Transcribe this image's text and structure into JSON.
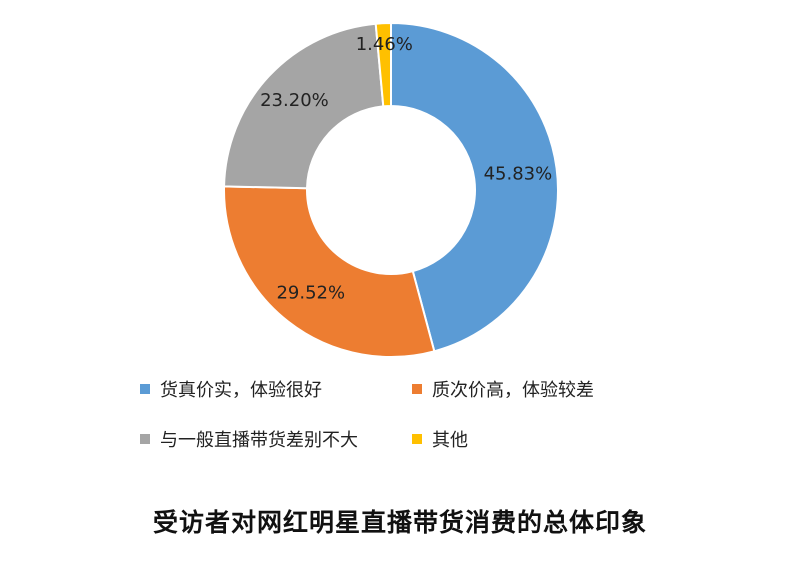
{
  "chart_data": {
    "type": "pie",
    "donut": true,
    "title": "受访者对网红明星直播带货消费的总体印象",
    "legend_position": "bottom",
    "slices": [
      {
        "label": "货真价实，体验很好",
        "value": 45.83,
        "value_label": "45.83%",
        "color": "#5B9BD5"
      },
      {
        "label": "质次价高，体验较差",
        "value": 29.52,
        "value_label": "29.52%",
        "color": "#ED7D31"
      },
      {
        "label": "与一般直播带货差别不大",
        "value": 23.2,
        "value_label": "23.20%",
        "color": "#A5A5A5"
      },
      {
        "label": "其他",
        "value": 1.46,
        "value_label": "1.46%",
        "color": "#FFC000"
      }
    ]
  }
}
